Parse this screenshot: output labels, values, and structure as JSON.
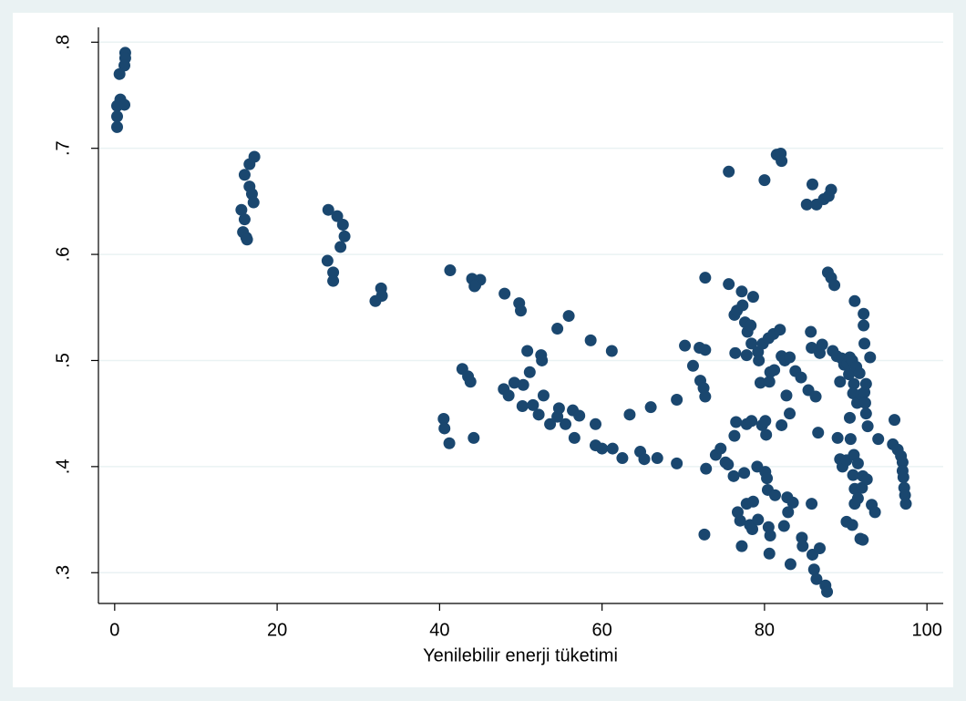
{
  "chart_data": {
    "type": "scatter",
    "x_label": "Yenilebilir enerji tüketimi",
    "color": "#1a476f",
    "grid": true,
    "xlim": [
      -2,
      102
    ],
    "xticks": [
      0,
      20,
      40,
      60,
      80,
      100
    ],
    "ylim": [
      0.271,
      0.814
    ],
    "yticks": [
      {
        "value": 0.3,
        "label": ".3"
      },
      {
        "value": 0.4,
        "label": ".4"
      },
      {
        "value": 0.5,
        "label": ".5"
      },
      {
        "value": 0.6,
        "label": ".6"
      },
      {
        "value": 0.7,
        "label": ".7"
      },
      {
        "value": 0.8,
        "label": ".8"
      }
    ],
    "x": [
      1.3,
      1.3,
      1.2,
      0.6,
      0.7,
      0.8,
      1.2,
      0.3,
      0.3,
      0.3,
      17.2,
      16.6,
      16.0,
      16.6,
      16.9,
      17.1,
      15.6,
      16.0,
      15.8,
      16.2,
      16.3,
      26.3,
      27.4,
      28.1,
      28.3,
      27.8,
      26.2,
      26.9,
      26.9,
      32.8,
      32.9,
      32.1,
      41.3,
      44.0,
      45.0,
      44.4,
      44.3,
      42.8,
      43.5,
      43.8,
      40.5,
      40.6,
      41.2,
      44.2,
      48.0,
      49.8,
      50.0,
      50.8,
      51.1,
      52.5,
      52.6,
      47.9,
      48.5,
      49.2,
      50.3,
      50.2,
      51.5,
      52.2,
      52.8,
      53.6,
      54.5,
      54.7,
      54.5,
      55.9,
      55.5,
      56.4,
      56.6,
      57.2,
      58.6,
      59.2,
      59.2,
      60.0,
      61.2,
      61.3,
      62.5,
      63.4,
      64.7,
      65.2,
      66.0,
      66.8,
      69.2,
      69.2,
      70.2,
      71.2,
      72.0,
      72.7,
      72.1,
      72.5,
      72.7,
      72.7,
      72.8,
      72.6,
      74.0,
      74.6,
      75.2,
      75.5,
      75.6,
      75.6,
      76.3,
      76.6,
      76.4,
      76.5,
      76.3,
      76.2,
      76.7,
      77.0,
      77.3,
      77.2,
      77.6,
      77.9,
      77.8,
      78.3,
      78.4,
      78.6,
      77.5,
      77.8,
      78.4,
      77.2,
      77.8,
      78.2,
      78.5,
      78.6,
      79.2,
      79.1,
      79.2,
      79.3,
      79.5,
      79.7,
      79.8,
      80.0,
      80.1,
      80.2,
      80.1,
      80.3,
      80.4,
      80.5,
      80.6,
      80.7,
      80.5,
      80.7,
      80.6,
      81.1,
      81.2,
      81.3,
      81.5,
      81.9,
      82.0,
      82.1,
      82.1,
      82.1,
      82.5,
      82.4,
      82.7,
      82.8,
      82.9,
      83.1,
      83.1,
      83.2,
      83.5,
      83.8,
      84.5,
      84.6,
      84.7,
      85.2,
      85.4,
      85.7,
      85.8,
      85.8,
      85.9,
      85.9,
      86.1,
      86.3,
      86.4,
      86.4,
      86.6,
      86.8,
      86.8,
      87.1,
      87.3,
      87.5,
      87.7,
      87.8,
      87.9,
      88.2,
      88.2,
      88.4,
      88.6,
      88.9,
      89.0,
      89.3,
      89.3,
      89.5,
      89.6,
      89.8,
      90.1,
      90.2,
      90.1,
      90.4,
      90.5,
      90.5,
      90.6,
      90.8,
      90.8,
      90.9,
      90.9,
      91.0,
      91.0,
      91.1,
      91.1,
      91.1,
      91.3,
      91.4,
      91.5,
      91.5,
      91.7,
      91.8,
      91.9,
      92.0,
      92.1,
      92.1,
      92.2,
      92.2,
      92.3,
      92.3,
      92.4,
      92.5,
      92.5,
      92.6,
      92.7,
      93.0,
      93.2,
      93.6,
      94.0,
      95.8,
      96.0,
      96.4,
      96.8,
      97.0,
      97.0,
      97.1,
      97.2,
      97.3,
      97.4
    ],
    "values": [
      0.79,
      0.785,
      0.778,
      0.77,
      0.746,
      0.742,
      0.741,
      0.74,
      0.73,
      0.72,
      0.692,
      0.685,
      0.675,
      0.664,
      0.657,
      0.649,
      0.642,
      0.633,
      0.621,
      0.616,
      0.614,
      0.642,
      0.636,
      0.628,
      0.617,
      0.607,
      0.594,
      0.583,
      0.575,
      0.568,
      0.561,
      0.556,
      0.585,
      0.577,
      0.576,
      0.571,
      0.57,
      0.492,
      0.485,
      0.48,
      0.445,
      0.436,
      0.422,
      0.427,
      0.563,
      0.554,
      0.547,
      0.509,
      0.489,
      0.505,
      0.5,
      0.473,
      0.467,
      0.479,
      0.477,
      0.457,
      0.458,
      0.449,
      0.467,
      0.44,
      0.447,
      0.455,
      0.53,
      0.542,
      0.44,
      0.453,
      0.427,
      0.448,
      0.519,
      0.44,
      0.42,
      0.417,
      0.509,
      0.417,
      0.408,
      0.449,
      0.414,
      0.407,
      0.456,
      0.408,
      0.463,
      0.403,
      0.514,
      0.495,
      0.512,
      0.51,
      0.481,
      0.474,
      0.466,
      0.578,
      0.398,
      0.336,
      0.411,
      0.417,
      0.404,
      0.402,
      0.572,
      0.678,
      0.543,
      0.547,
      0.507,
      0.442,
      0.429,
      0.391,
      0.357,
      0.349,
      0.552,
      0.565,
      0.536,
      0.527,
      0.505,
      0.533,
      0.516,
      0.56,
      0.394,
      0.44,
      0.443,
      0.325,
      0.365,
      0.345,
      0.341,
      0.367,
      0.35,
      0.4,
      0.508,
      0.5,
      0.479,
      0.439,
      0.516,
      0.67,
      0.443,
      0.43,
      0.395,
      0.389,
      0.378,
      0.521,
      0.48,
      0.489,
      0.343,
      0.335,
      0.318,
      0.525,
      0.491,
      0.373,
      0.694,
      0.529,
      0.695,
      0.688,
      0.439,
      0.504,
      0.5,
      0.344,
      0.467,
      0.371,
      0.357,
      0.503,
      0.45,
      0.308,
      0.366,
      0.49,
      0.484,
      0.333,
      0.325,
      0.647,
      0.472,
      0.527,
      0.512,
      0.365,
      0.317,
      0.666,
      0.303,
      0.466,
      0.647,
      0.294,
      0.432,
      0.323,
      0.507,
      0.515,
      0.652,
      0.288,
      0.282,
      0.583,
      0.655,
      0.661,
      0.578,
      0.509,
      0.571,
      0.504,
      0.427,
      0.48,
      0.407,
      0.502,
      0.4,
      0.496,
      0.406,
      0.497,
      0.348,
      0.487,
      0.503,
      0.446,
      0.426,
      0.5,
      0.345,
      0.469,
      0.392,
      0.478,
      0.411,
      0.379,
      0.365,
      0.556,
      0.494,
      0.46,
      0.403,
      0.37,
      0.488,
      0.332,
      0.468,
      0.38,
      0.391,
      0.331,
      0.544,
      0.533,
      0.516,
      0.47,
      0.46,
      0.45,
      0.478,
      0.388,
      0.438,
      0.503,
      0.364,
      0.357,
      0.426,
      0.421,
      0.444,
      0.416,
      0.41,
      0.404,
      0.396,
      0.39,
      0.38,
      0.373,
      0.365
    ]
  }
}
